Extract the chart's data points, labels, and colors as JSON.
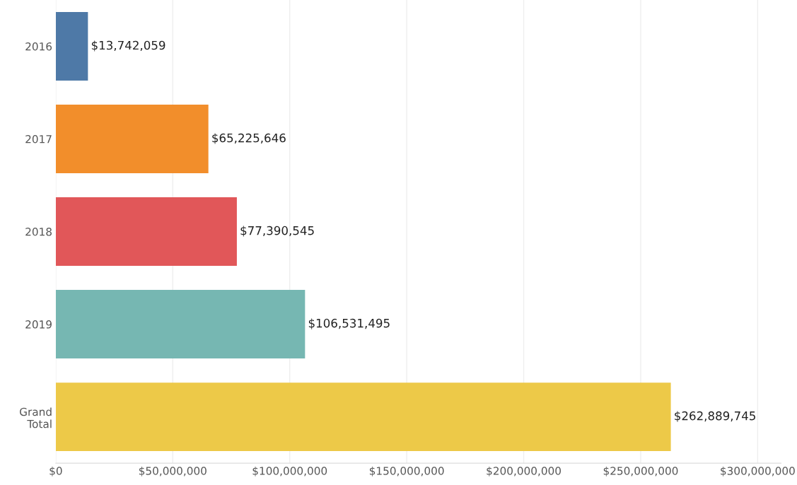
{
  "chart_data": {
    "type": "bar",
    "orientation": "horizontal",
    "categories": [
      "2016",
      "2017",
      "2018",
      "2019",
      "Grand\nTotal"
    ],
    "values": [
      13742059,
      65225646,
      77390545,
      106531495,
      262889745
    ],
    "colors": [
      "#4e79a7",
      "#f28e2b",
      "#e15759",
      "#76b7b2",
      "#edc948"
    ],
    "value_labels": [
      "$13,742,059",
      "$65,225,646",
      "$77,390,545",
      "$106,531,495",
      "$262,889,745"
    ],
    "xlim": [
      0,
      310000000
    ],
    "xticks": [
      {
        "value": 0,
        "label": "$0"
      },
      {
        "value": 50000000,
        "label": "$50,000,000"
      },
      {
        "value": 100000000,
        "label": "$100,000,000"
      },
      {
        "value": 150000000,
        "label": "$150,000,000"
      },
      {
        "value": 200000000,
        "label": "$200,000,000"
      },
      {
        "value": 250000000,
        "label": "$250,000,000"
      },
      {
        "value": 300000000,
        "label": "$300,000,000"
      }
    ],
    "grid": "x"
  }
}
